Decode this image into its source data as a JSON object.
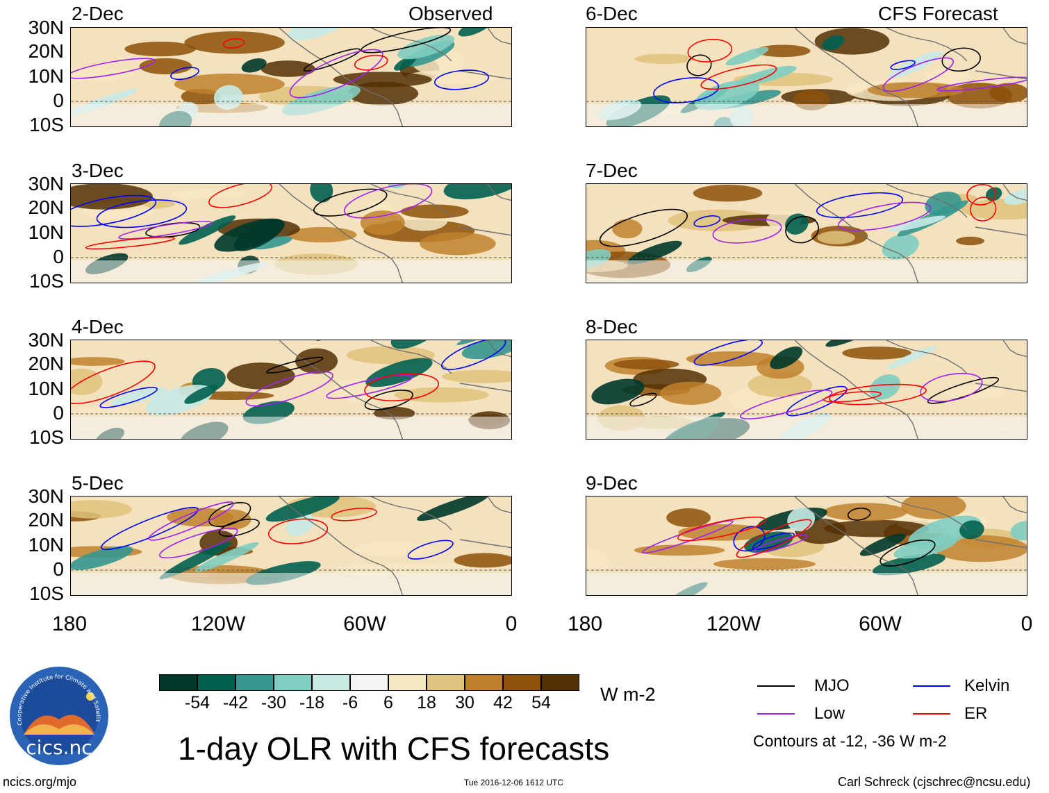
{
  "header": {
    "observed_label": "Observed",
    "forecast_label": "CFS Forecast"
  },
  "panels": {
    "observed": [
      "2-Dec",
      "3-Dec",
      "4-Dec",
      "5-Dec"
    ],
    "forecast": [
      "6-Dec",
      "7-Dec",
      "8-Dec",
      "9-Dec"
    ]
  },
  "axes": {
    "lat_labels": [
      "30N",
      "20N",
      "10N",
      "0",
      "10S"
    ],
    "lon_labels": [
      "180",
      "120W",
      "60W",
      "0"
    ]
  },
  "colorbar": {
    "unit": "W m-2",
    "ticks": [
      "-54",
      "-42",
      "-30",
      "-18",
      "-6",
      "6",
      "18",
      "30",
      "42",
      "54"
    ],
    "colors": [
      "#00382b",
      "#006050",
      "#35978f",
      "#80cdc1",
      "#c7eae5",
      "#f5f5f5",
      "#f6e8c3",
      "#dfc27d",
      "#bf812d",
      "#8c510a",
      "#543005"
    ]
  },
  "legend": {
    "items": [
      {
        "label": "MJO",
        "color": "#000000"
      },
      {
        "label": "Kelvin",
        "color": "#0000ff"
      },
      {
        "label": "Low",
        "color": "#a020f0"
      },
      {
        "label": "ER",
        "color": "#ff0000"
      }
    ],
    "note": "Contours at -12, -36 W m-2"
  },
  "logo": {
    "text": "cics.nc",
    "ring_text": "Cooperative Institute for Climate and Satellites"
  },
  "title": "1-day OLR with CFS forecasts",
  "footer": {
    "url": "ncics.org/mjo",
    "timestamp": "Tue 2016-12-06 1612 UTC",
    "credit": "Carl Schreck (cjschrec@ncsu.edu)"
  }
}
